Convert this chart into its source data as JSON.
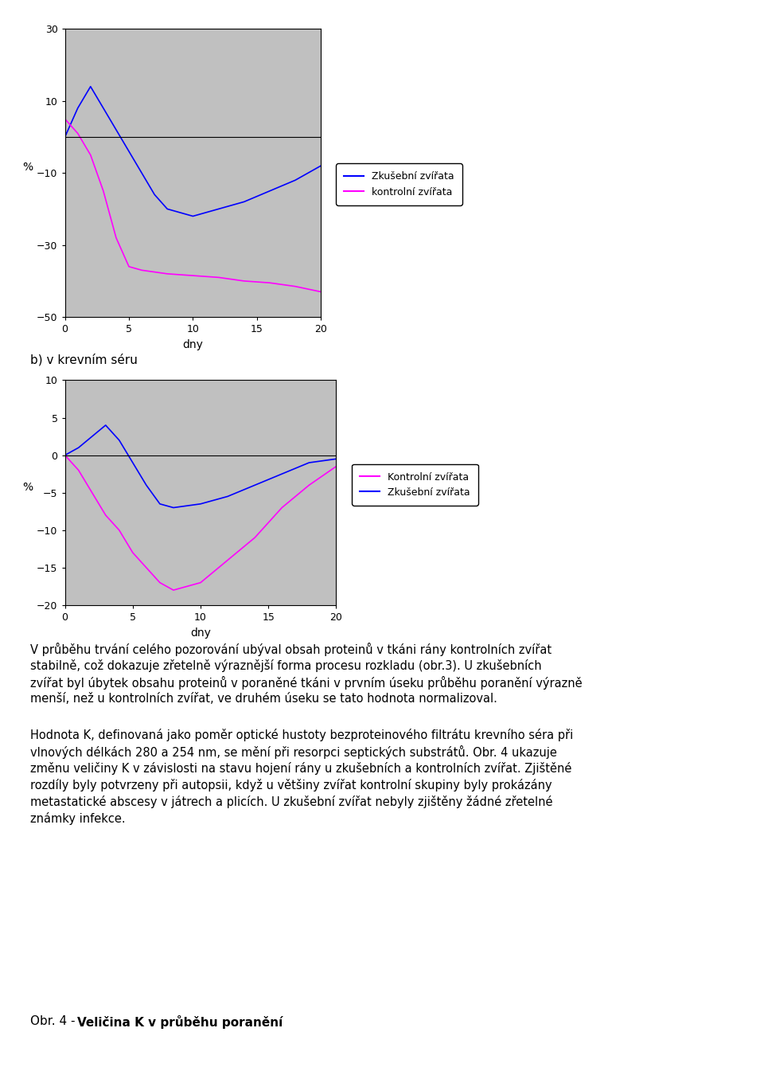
{
  "chart1": {
    "ylabel": "%",
    "xlabel": "dny",
    "ylim": [
      -50,
      30
    ],
    "xlim": [
      0,
      20
    ],
    "yticks": [
      30,
      10,
      -10,
      -30,
      -50
    ],
    "xticks": [
      0,
      5,
      10,
      15,
      20
    ],
    "bg_color": "#c0c0c0",
    "blue_x": [
      0,
      1,
      2,
      3,
      4,
      5,
      6,
      7,
      8,
      10,
      12,
      14,
      16,
      18,
      20
    ],
    "blue_y": [
      0,
      8,
      14,
      8,
      2,
      -4,
      -10,
      -16,
      -20,
      -22,
      -20,
      -18,
      -15,
      -12,
      -8
    ],
    "magenta_x": [
      0,
      1,
      2,
      3,
      4,
      5,
      6,
      7,
      8,
      10,
      12,
      14,
      16,
      18,
      20
    ],
    "magenta_y": [
      5,
      1,
      -5,
      -15,
      -28,
      -36,
      -37,
      -37.5,
      -38,
      -38.5,
      -39,
      -40,
      -40.5,
      -41.5,
      -43
    ],
    "legend_blue": "Zkušební zvířata",
    "legend_magenta": "kontrolní zvířata"
  },
  "chart2": {
    "ylabel": "%",
    "xlabel": "dny",
    "ylim": [
      -20,
      10
    ],
    "xlim": [
      0,
      20
    ],
    "yticks": [
      10,
      5,
      0,
      -5,
      -10,
      -15,
      -20
    ],
    "xticks": [
      0,
      5,
      10,
      15,
      20
    ],
    "bg_color": "#c0c0c0",
    "blue_x": [
      0,
      1,
      2,
      3,
      4,
      5,
      6,
      7,
      8,
      10,
      12,
      14,
      16,
      18,
      20
    ],
    "blue_y": [
      0,
      1,
      2.5,
      4,
      2,
      -1,
      -4,
      -6.5,
      -7,
      -6.5,
      -5.5,
      -4,
      -2.5,
      -1,
      -0.5
    ],
    "magenta_x": [
      0,
      1,
      2,
      3,
      4,
      5,
      6,
      7,
      8,
      10,
      12,
      14,
      16,
      18,
      20
    ],
    "magenta_y": [
      0,
      -2,
      -5,
      -8,
      -10,
      -13,
      -15,
      -17,
      -18,
      -17,
      -14,
      -11,
      -7,
      -4,
      -1.5
    ],
    "legend_magenta": "Kontrolní zvířata",
    "legend_blue": "Zkušební zvířata"
  },
  "text_b": "b) v krevním séru",
  "para1_line1": "V průběhu trvání celého pozorování ubýval obsah proteinů v tkáni rány kontrolních zvířat",
  "para1_line2": "stabilně, což dokazuje zřetelně výraznější forma procesu rozkladu (obr.3). U zkušebních",
  "para1_line3": "zvířat byl úbytek obsahu proteinů v poraněné tkáni v prvním úseku průběhu poranění výrazně",
  "para1_line4": "menší, než u kontrolních zvířat, ve druhém úseku se tato hodnota normalizoval.",
  "para2_line1": "Hodnota K, definovaná jako poměr optické hustoty bezproteinového filtrátu krevního séra při",
  "para2_line2": "vlnových délkách 280 a 254 nm, se mění při resorpci septických substrátů. Obr. 4 ukazuje",
  "para2_line3": "změnu veličiny K v závislosti na stavu hojení rány u zkušebních a kontrolních zvířat. Zjištěné",
  "para2_line4": "rozdíly byly potvrzeny při autopsii, když u většiny zvířat kontrolní skupiny byly prokázány",
  "para2_line5": "metastatické abscesy v játrech a plicích. U zkušební zvířat nebyly zjištěny žádné zřetelné",
  "para2_line6": "známky infekce.",
  "caption_prefix": "Obr. 4 - ",
  "caption_bold": "Veličina K v průběhu poranění"
}
